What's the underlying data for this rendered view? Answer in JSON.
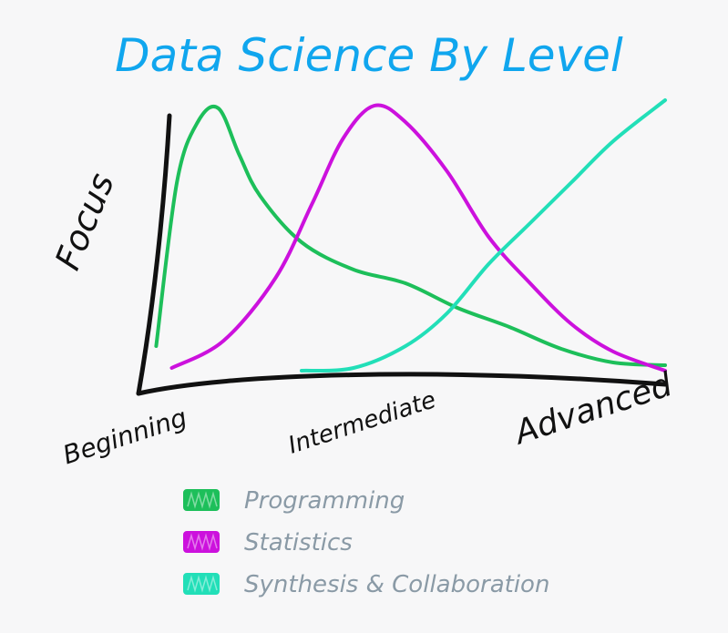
{
  "chart_data": {
    "type": "line",
    "title": "Data Science By Level",
    "ylabel": "Focus",
    "categories": [
      "Beginning",
      "Intermediate",
      "Advanced"
    ],
    "x": [
      0,
      0.1,
      0.2,
      0.3,
      0.4,
      0.5,
      0.6,
      0.7,
      0.8,
      0.9,
      1.0
    ],
    "ylim": [
      0,
      1
    ],
    "grid": false,
    "legend": "bottom-left",
    "series": [
      {
        "name": "Programming",
        "color": "#1dbf5a",
        "x": [
          0.02,
          0.06,
          0.1,
          0.14,
          0.18,
          0.22,
          0.3,
          0.4,
          0.5,
          0.6,
          0.7,
          0.8,
          0.9,
          1.0
        ],
        "values": [
          0.1,
          0.7,
          0.92,
          0.97,
          0.8,
          0.65,
          0.48,
          0.38,
          0.33,
          0.24,
          0.17,
          0.09,
          0.04,
          0.03
        ]
      },
      {
        "name": "Statistics",
        "color": "#cc11dd",
        "x": [
          0.05,
          0.15,
          0.25,
          0.32,
          0.38,
          0.44,
          0.5,
          0.58,
          0.66,
          0.74,
          0.82,
          0.9,
          1.0
        ],
        "values": [
          0.02,
          0.12,
          0.35,
          0.62,
          0.86,
          0.98,
          0.92,
          0.74,
          0.5,
          0.33,
          0.18,
          0.08,
          0.01
        ]
      },
      {
        "name": "Synthesis & Collaboration",
        "color": "#22dfb8",
        "x": [
          0.3,
          0.4,
          0.5,
          0.58,
          0.66,
          0.74,
          0.82,
          0.9,
          1.0
        ],
        "values": [
          0.01,
          0.02,
          0.1,
          0.22,
          0.4,
          0.55,
          0.7,
          0.85,
          1.0
        ]
      }
    ]
  },
  "colors": {
    "title": "#10a6ee",
    "axis": "#111111",
    "legend_text": "#8a9aa6"
  }
}
